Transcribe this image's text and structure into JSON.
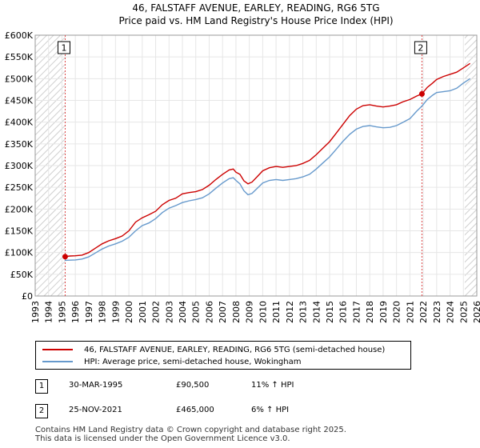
{
  "chart_data": {
    "type": "line",
    "title": "46, FALSTAFF AVENUE, EARLEY, READING, RG6 5TG",
    "subtitle": "Price paid vs. HM Land Registry's House Price Index (HPI)",
    "xlim": [
      1993,
      2026
    ],
    "ylim": [
      0,
      600000
    ],
    "x_ticks": [
      1993,
      1994,
      1995,
      1996,
      1997,
      1998,
      1999,
      2000,
      2001,
      2002,
      2003,
      2004,
      2005,
      2006,
      2007,
      2008,
      2009,
      2010,
      2011,
      2012,
      2013,
      2014,
      2015,
      2016,
      2017,
      2018,
      2019,
      2020,
      2021,
      2022,
      2023,
      2024,
      2025,
      2026
    ],
    "y_ticks": [
      {
        "value": 0,
        "label": "£0"
      },
      {
        "value": 50000,
        "label": "£50K"
      },
      {
        "value": 100000,
        "label": "£100K"
      },
      {
        "value": 150000,
        "label": "£150K"
      },
      {
        "value": 200000,
        "label": "£200K"
      },
      {
        "value": 250000,
        "label": "£250K"
      },
      {
        "value": 300000,
        "label": "£300K"
      },
      {
        "value": 350000,
        "label": "£350K"
      },
      {
        "value": 400000,
        "label": "£400K"
      },
      {
        "value": 450000,
        "label": "£450K"
      },
      {
        "value": 500000,
        "label": "£500K"
      },
      {
        "value": 550000,
        "label": "£550K"
      },
      {
        "value": 600000,
        "label": "£600K"
      }
    ],
    "series": [
      {
        "name": "46, FALSTAFF AVENUE, EARLEY, READING, RG6 5TG (semi-detached house)",
        "color": "#cc0000",
        "points": [
          [
            1995.2,
            90500
          ],
          [
            1995.6,
            92000
          ],
          [
            1996,
            92500
          ],
          [
            1996.5,
            94000
          ],
          [
            1997,
            100000
          ],
          [
            1997.5,
            110000
          ],
          [
            1998,
            120000
          ],
          [
            1998.5,
            127000
          ],
          [
            1999,
            132000
          ],
          [
            1999.5,
            138000
          ],
          [
            2000,
            150000
          ],
          [
            2000.5,
            170000
          ],
          [
            2001,
            180000
          ],
          [
            2001.5,
            187000
          ],
          [
            2002,
            195000
          ],
          [
            2002.5,
            210000
          ],
          [
            2003,
            220000
          ],
          [
            2003.5,
            225000
          ],
          [
            2004,
            235000
          ],
          [
            2004.5,
            238000
          ],
          [
            2005,
            240000
          ],
          [
            2005.5,
            245000
          ],
          [
            2006,
            255000
          ],
          [
            2006.5,
            268000
          ],
          [
            2007,
            280000
          ],
          [
            2007.5,
            290000
          ],
          [
            2007.8,
            292000
          ],
          [
            2008,
            285000
          ],
          [
            2008.3,
            280000
          ],
          [
            2008.6,
            265000
          ],
          [
            2008.9,
            258000
          ],
          [
            2009.2,
            262000
          ],
          [
            2009.6,
            275000
          ],
          [
            2010,
            288000
          ],
          [
            2010.5,
            295000
          ],
          [
            2011,
            298000
          ],
          [
            2011.5,
            296000
          ],
          [
            2012,
            298000
          ],
          [
            2012.5,
            300000
          ],
          [
            2013,
            305000
          ],
          [
            2013.5,
            312000
          ],
          [
            2014,
            325000
          ],
          [
            2014.5,
            340000
          ],
          [
            2015,
            355000
          ],
          [
            2015.5,
            375000
          ],
          [
            2016,
            395000
          ],
          [
            2016.5,
            415000
          ],
          [
            2017,
            430000
          ],
          [
            2017.5,
            438000
          ],
          [
            2018,
            440000
          ],
          [
            2018.5,
            437000
          ],
          [
            2019,
            435000
          ],
          [
            2019.5,
            437000
          ],
          [
            2020,
            440000
          ],
          [
            2020.5,
            447000
          ],
          [
            2021,
            452000
          ],
          [
            2021.5,
            460000
          ],
          [
            2021.9,
            465000
          ],
          [
            2022.3,
            480000
          ],
          [
            2022.7,
            490000
          ],
          [
            2023,
            498000
          ],
          [
            2023.5,
            505000
          ],
          [
            2024,
            510000
          ],
          [
            2024.5,
            515000
          ],
          [
            2025,
            525000
          ],
          [
            2025.5,
            535000
          ]
        ]
      },
      {
        "name": "HPI: Average price, semi-detached house, Wokingham",
        "color": "#6699cc",
        "points": [
          [
            1995.2,
            82000
          ],
          [
            1995.6,
            82500
          ],
          [
            1996,
            83000
          ],
          [
            1996.5,
            85000
          ],
          [
            1997,
            90000
          ],
          [
            1997.5,
            99000
          ],
          [
            1998,
            108000
          ],
          [
            1998.5,
            115000
          ],
          [
            1999,
            120000
          ],
          [
            1999.5,
            126000
          ],
          [
            2000,
            135000
          ],
          [
            2000.5,
            150000
          ],
          [
            2001,
            162000
          ],
          [
            2001.5,
            168000
          ],
          [
            2002,
            178000
          ],
          [
            2002.5,
            192000
          ],
          [
            2003,
            202000
          ],
          [
            2003.5,
            208000
          ],
          [
            2004,
            215000
          ],
          [
            2004.5,
            219000
          ],
          [
            2005,
            222000
          ],
          [
            2005.5,
            226000
          ],
          [
            2006,
            235000
          ],
          [
            2006.5,
            248000
          ],
          [
            2007,
            260000
          ],
          [
            2007.5,
            270000
          ],
          [
            2007.8,
            272000
          ],
          [
            2008,
            266000
          ],
          [
            2008.3,
            258000
          ],
          [
            2008.6,
            242000
          ],
          [
            2008.9,
            233000
          ],
          [
            2009.2,
            236000
          ],
          [
            2009.6,
            248000
          ],
          [
            2010,
            260000
          ],
          [
            2010.5,
            266000
          ],
          [
            2011,
            268000
          ],
          [
            2011.5,
            266000
          ],
          [
            2012,
            268000
          ],
          [
            2012.5,
            270000
          ],
          [
            2013,
            274000
          ],
          [
            2013.5,
            280000
          ],
          [
            2014,
            292000
          ],
          [
            2014.5,
            306000
          ],
          [
            2015,
            320000
          ],
          [
            2015.5,
            338000
          ],
          [
            2016,
            356000
          ],
          [
            2016.5,
            372000
          ],
          [
            2017,
            384000
          ],
          [
            2017.5,
            390000
          ],
          [
            2018,
            392000
          ],
          [
            2018.5,
            389000
          ],
          [
            2019,
            387000
          ],
          [
            2019.5,
            388000
          ],
          [
            2020,
            392000
          ],
          [
            2020.5,
            400000
          ],
          [
            2021,
            408000
          ],
          [
            2021.5,
            425000
          ],
          [
            2021.9,
            437000
          ],
          [
            2022.3,
            452000
          ],
          [
            2022.7,
            462000
          ],
          [
            2023,
            468000
          ],
          [
            2023.5,
            470000
          ],
          [
            2024,
            472000
          ],
          [
            2024.5,
            478000
          ],
          [
            2025,
            490000
          ],
          [
            2025.5,
            500000
          ]
        ]
      }
    ],
    "annotations": [
      {
        "label": "1",
        "x": 1995.24,
        "value": 90500
      },
      {
        "label": "2",
        "x": 2021.9,
        "value": 465000
      }
    ],
    "legend_position": "bottom"
  },
  "legend": {
    "items": [
      {
        "label": "46, FALSTAFF AVENUE, EARLEY, READING, RG6 5TG (semi-detached house)",
        "color": "#cc0000"
      },
      {
        "label": "HPI: Average price, semi-detached house, Wokingham",
        "color": "#6699cc"
      }
    ]
  },
  "sales": [
    {
      "num": "1",
      "date": "30-MAR-1995",
      "price": "£90,500",
      "hpi": "11% ↑ HPI"
    },
    {
      "num": "2",
      "date": "25-NOV-2021",
      "price": "£465,000",
      "hpi": "6% ↑ HPI"
    }
  ],
  "footer": {
    "line1": "Contains HM Land Registry data © Crown copyright and database right 2025.",
    "line2": "This data is licensed under the Open Government Licence v3.0."
  }
}
